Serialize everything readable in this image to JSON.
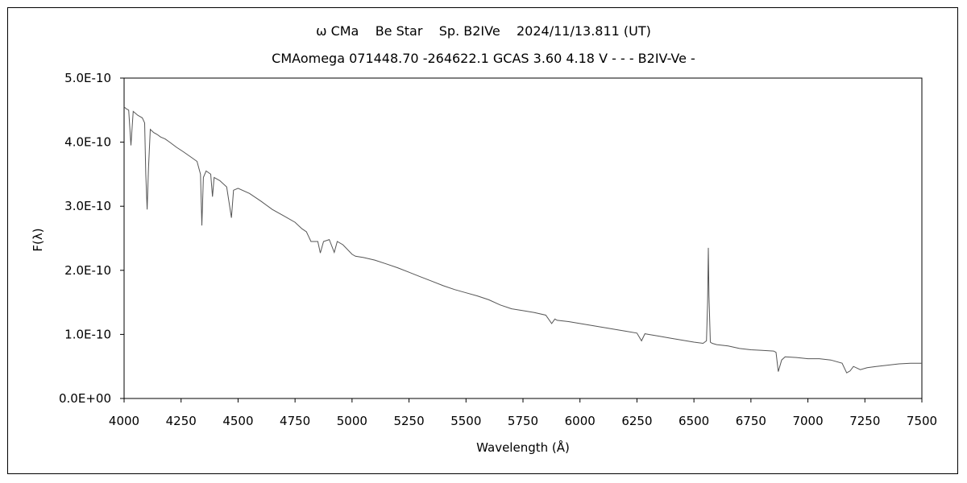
{
  "chart_data": {
    "type": "line",
    "title": "ω CMa    Be Star    Sp. B2IVe    2024/11/13.811 (UT)",
    "subtitle": "CMAomega 071448.70 -264622.1 GCAS 3.60 4.18 V - - - B2IV-Ve -",
    "xlabel": "Wavelength (Å)",
    "ylabel": "F(λ)",
    "xlim": [
      4000,
      7500
    ],
    "ylim": [
      0,
      5e-10
    ],
    "x_ticks": [
      4000,
      4250,
      4500,
      4750,
      5000,
      5250,
      5500,
      5750,
      6000,
      6250,
      6500,
      6750,
      7000,
      7250,
      7500
    ],
    "x_tick_labels": [
      "4000",
      "4250",
      "4500",
      "4750",
      "5000",
      "5250",
      "5500",
      "5750",
      "6000",
      "6250",
      "6500",
      "6750",
      "7000",
      "7250",
      "7500"
    ],
    "y_ticks": [
      0,
      1e-10,
      2e-10,
      3e-10,
      4e-10,
      5e-10
    ],
    "y_tick_labels": [
      "0.0E+00",
      "1.0E-10",
      "2.0E-10",
      "3.0E-10",
      "4.0E-10",
      "5.0E-10"
    ],
    "grid": false,
    "legend": "none",
    "line_color": "#555555",
    "series": [
      {
        "x": [
          4000,
          4010,
          4020,
          4030,
          4040,
          4050,
          4060,
          4070,
          4080,
          4090,
          4095,
          4101,
          4107,
          4115,
          4130,
          4145,
          4160,
          4180,
          4200,
          4230,
          4260,
          4280,
          4300,
          4320,
          4335,
          4341,
          4348,
          4360,
          4380,
          4388,
          4395,
          4420,
          4450,
          4471,
          4480,
          4500,
          4550,
          4600,
          4650,
          4700,
          4750,
          4780,
          4800,
          4820,
          4850,
          4861,
          4875,
          4900,
          4922,
          4935,
          4960,
          5000,
          5015,
          5050,
          5100,
          5150,
          5200,
          5250,
          5300,
          5350,
          5400,
          5450,
          5500,
          5550,
          5600,
          5650,
          5700,
          5750,
          5800,
          5850,
          5876,
          5890,
          5900,
          5950,
          6000,
          6050,
          6100,
          6150,
          6200,
          6250,
          6270,
          6285,
          6300,
          6350,
          6400,
          6450,
          6500,
          6520,
          6540,
          6555,
          6560,
          6563,
          6566,
          6572,
          6580,
          6600,
          6650,
          6700,
          6750,
          6800,
          6850,
          6860,
          6870,
          6885,
          6900,
          6950,
          7000,
          7050,
          7100,
          7150,
          7170,
          7185,
          7200,
          7230,
          7260,
          7300,
          7350,
          7400,
          7450,
          7500
        ],
        "y": [
          4.55e-10,
          4.52e-10,
          4.5e-10,
          3.95e-10,
          4.48e-10,
          4.45e-10,
          4.42e-10,
          4.4e-10,
          4.38e-10,
          4.3e-10,
          3.5e-10,
          2.95e-10,
          3.6e-10,
          4.2e-10,
          4.15e-10,
          4.12e-10,
          4.08e-10,
          4.05e-10,
          4e-10,
          3.92e-10,
          3.85e-10,
          3.8e-10,
          3.75e-10,
          3.7e-10,
          3.5e-10,
          2.7e-10,
          3.45e-10,
          3.55e-10,
          3.5e-10,
          3.15e-10,
          3.45e-10,
          3.4e-10,
          3.3e-10,
          2.82e-10,
          3.25e-10,
          3.28e-10,
          3.2e-10,
          3.08e-10,
          2.95e-10,
          2.85e-10,
          2.75e-10,
          2.65e-10,
          2.6e-10,
          2.45e-10,
          2.45e-10,
          2.27e-10,
          2.45e-10,
          2.48e-10,
          2.28e-10,
          2.45e-10,
          2.4e-10,
          2.25e-10,
          2.22e-10,
          2.2e-10,
          2.16e-10,
          2.1e-10,
          2.04e-10,
          1.97e-10,
          1.9e-10,
          1.83e-10,
          1.76e-10,
          1.7e-10,
          1.65e-10,
          1.6e-10,
          1.54e-10,
          1.46e-10,
          1.4e-10,
          1.37e-10,
          1.34e-10,
          1.3e-10,
          1.17e-10,
          1.24e-10,
          1.22e-10,
          1.2e-10,
          1.17e-10,
          1.14e-10,
          1.11e-10,
          1.08e-10,
          1.05e-10,
          1.02e-10,
          9e-11,
          1.01e-10,
          1e-10,
          9.7e-11,
          9.4e-11,
          9.1e-11,
          8.8e-11,
          8.7e-11,
          8.6e-11,
          9e-11,
          1.5e-10,
          2.35e-10,
          1.6e-10,
          8.8e-11,
          8.6e-11,
          8.4e-11,
          8.2e-11,
          7.8e-11,
          7.6e-11,
          7.5e-11,
          7.4e-11,
          7.2e-11,
          4.2e-11,
          6e-11,
          6.5e-11,
          6.4e-11,
          6.2e-11,
          6.2e-11,
          6e-11,
          5.5e-11,
          4e-11,
          4.3e-11,
          5e-11,
          4.5e-11,
          4.8e-11,
          5e-11,
          5.2e-11,
          5.4e-11,
          5.5e-11,
          5.5e-11
        ]
      }
    ]
  }
}
